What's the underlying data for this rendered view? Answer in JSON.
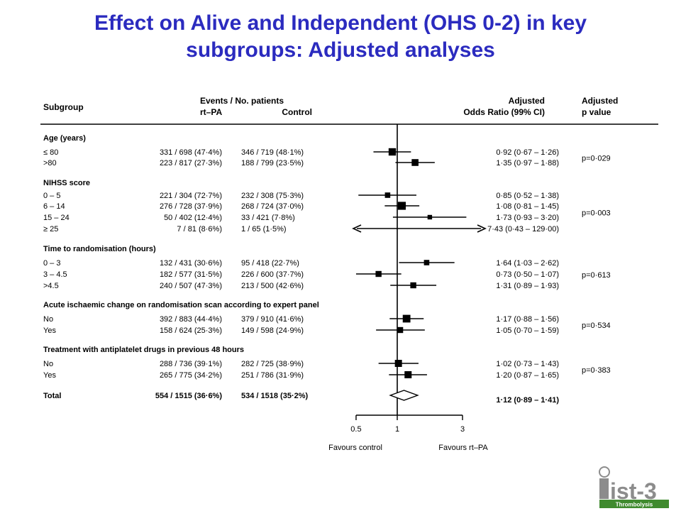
{
  "slide": {
    "title_line1": "Effect on Alive and Independent (OHS 0-2) in key",
    "title_line2": "subgroups: Adjusted analyses"
  },
  "colors": {
    "title": "#2b2bbf",
    "ink": "#000000",
    "logo_green": "#3f8a2e",
    "logo_gray": "#8c8c8c"
  },
  "logo": {
    "text": "ist-3",
    "subtext": "Thrombolysis"
  },
  "chart_data": {
    "type": "forest",
    "headers": {
      "subgroup": "Subgroup",
      "events": "Events / No. patients",
      "rtpa": "rt–PA",
      "control": "Control",
      "or_line1": "Adjusted",
      "or_line2": "Odds Ratio (99% CI)",
      "p_line1": "Adjusted",
      "p_line2": "p value"
    },
    "x_scale": "log",
    "xlim": [
      0.5,
      3
    ],
    "reference_line": 1,
    "x_ticks": [
      {
        "value": 0.5,
        "label": "0.5"
      },
      {
        "value": 1,
        "label": "1"
      },
      {
        "value": 3,
        "label": "3"
      }
    ],
    "x_labels": {
      "left": "Favours control",
      "right": "Favours rt–PA"
    },
    "groups": [
      {
        "label": "Age (years)",
        "p_value": "p=0·029",
        "rows": [
          {
            "label": "≤ 80",
            "rtpa": "331 / 698  (47·4%)",
            "control": "346 / 719  (48·1%)",
            "or": 0.92,
            "lo": 0.67,
            "hi": 1.26,
            "weight": 0.8,
            "or_text": "0·92 (0·67 – 1·26)"
          },
          {
            "label": ">80",
            "rtpa": "223 / 817  (27·3%)",
            "control": "188 / 799  (23·5%)",
            "or": 1.35,
            "lo": 0.97,
            "hi": 1.88,
            "weight": 0.7,
            "or_text": "1·35 (0·97 – 1·88)"
          }
        ]
      },
      {
        "label": "NIHSS score",
        "p_value": "p=0·003",
        "rows": [
          {
            "label": "0 – 5",
            "rtpa": "221 / 304  (72·7%)",
            "control": "232 / 308  (75·3%)",
            "or": 0.85,
            "lo": 0.52,
            "hi": 1.38,
            "weight": 0.45,
            "or_text": "0·85 (0·52 – 1·38)"
          },
          {
            "label": "6 – 14",
            "rtpa": "276 / 728  (37·9%)",
            "control": "268 / 724  (37·0%)",
            "or": 1.08,
            "lo": 0.81,
            "hi": 1.45,
            "weight": 0.9,
            "or_text": "1·08 (0·81 – 1·45)"
          },
          {
            "label": "15 – 24",
            "rtpa": "50 / 402  (12·4%)",
            "control": "33 / 421  (7·8%)",
            "or": 1.73,
            "lo": 0.93,
            "hi": 3.2,
            "weight": 0.3,
            "or_text": "1·73 (0·93 – 3·20)"
          },
          {
            "label": "≥ 25",
            "rtpa": "7 / 81  (8·6%)",
            "control": "1 / 65  (1·5%)",
            "or": 7.43,
            "lo": 0.43,
            "hi": 129.0,
            "weight": 0.0,
            "arrows": true,
            "or_text": "7·43 (0·43 – 129·00)"
          }
        ]
      },
      {
        "label": "Time to randomisation (hours)",
        "p_value": "p=0·613",
        "rows": [
          {
            "label": "0 – 3",
            "rtpa": "132 / 431  (30·6%)",
            "control": "95 / 418  (22·7%)",
            "or": 1.64,
            "lo": 1.03,
            "hi": 2.62,
            "weight": 0.45,
            "or_text": "1·64 (1·03 – 2·62)"
          },
          {
            "label": "3 – 4.5",
            "rtpa": "182 / 577  (31·5%)",
            "control": "226 / 600  (37·7%)",
            "or": 0.73,
            "lo": 0.5,
            "hi": 1.07,
            "weight": 0.55,
            "or_text": "0·73 (0·50 – 1·07)"
          },
          {
            "label": ">4.5",
            "rtpa": "240 / 507  (47·3%)",
            "control": "213 / 500  (42·6%)",
            "or": 1.31,
            "lo": 0.89,
            "hi": 1.93,
            "weight": 0.55,
            "or_text": "1·31 (0·89 – 1·93)"
          }
        ]
      },
      {
        "label": "Acute ischaemic change on randomisation scan according to expert panel",
        "p_value": "p=0·534",
        "rows": [
          {
            "label": "No",
            "rtpa": "392 / 883  (44·4%)",
            "control": "379 / 910  (41·6%)",
            "or": 1.17,
            "lo": 0.88,
            "hi": 1.56,
            "weight": 0.85,
            "or_text": "1·17 (0·88 – 1·56)"
          },
          {
            "label": "Yes",
            "rtpa": "158 / 624  (25·3%)",
            "control": "149 / 598  (24·9%)",
            "or": 1.05,
            "lo": 0.7,
            "hi": 1.59,
            "weight": 0.55,
            "or_text": "1·05 (0·70 – 1·59)"
          }
        ]
      },
      {
        "label": "Treatment with antiplatelet drugs in previous 48 hours",
        "p_value": "p=0·383",
        "rows": [
          {
            "label": "No",
            "rtpa": "288 / 736  (39·1%)",
            "control": "282 / 725  (38·9%)",
            "or": 1.02,
            "lo": 0.73,
            "hi": 1.43,
            "weight": 0.75,
            "or_text": "1·02 (0·73 – 1·43)"
          },
          {
            "label": "Yes",
            "rtpa": "265 / 775  (34·2%)",
            "control": "251 / 786  (31·9%)",
            "or": 1.2,
            "lo": 0.87,
            "hi": 1.65,
            "weight": 0.75,
            "or_text": "1·20 (0·87 – 1·65)"
          }
        ]
      }
    ],
    "total": {
      "label": "Total",
      "rtpa": "554 / 1515 (36·6%)",
      "control": "534 / 1518 (35·2%)",
      "or": 1.12,
      "lo": 0.89,
      "hi": 1.41,
      "or_text": "1·12 (0·89 – 1·41)"
    }
  }
}
